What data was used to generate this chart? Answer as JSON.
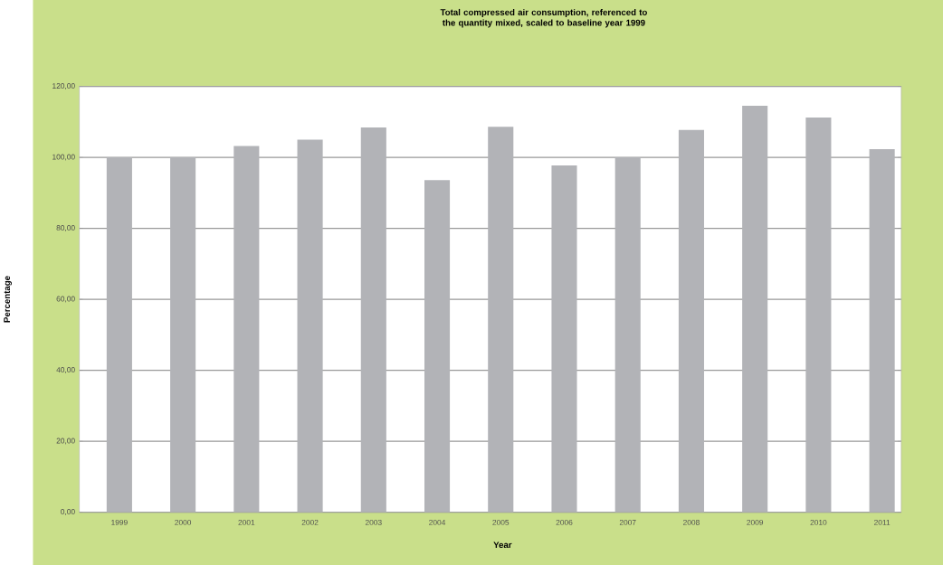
{
  "chart_data": {
    "type": "bar",
    "title": "Total compressed air consumption, referenced to the quantity mixed, scaled to baseline year 1999",
    "xlabel": "Year",
    "ylabel": "Percentage",
    "categories": [
      "1999",
      "2000",
      "2001",
      "2002",
      "2003",
      "2004",
      "2005",
      "2006",
      "2007",
      "2008",
      "2009",
      "2010",
      "2011"
    ],
    "values": [
      100,
      100,
      103.2,
      105.0,
      108.4,
      93.6,
      108.6,
      97.7,
      100,
      107.7,
      114.5,
      111.2,
      102.3
    ],
    "color": "#b2b3b7",
    "ylim": [
      0,
      120
    ],
    "yticks": [
      {
        "value": 0,
        "label": "0,00"
      },
      {
        "value": 20,
        "label": "20,00"
      },
      {
        "value": 40,
        "label": "40,00"
      },
      {
        "value": 60,
        "label": "60,00"
      },
      {
        "value": 80,
        "label": "80,00"
      },
      {
        "value": 100,
        "label": "100,00"
      },
      {
        "value": 120,
        "label": "120,00"
      }
    ],
    "grid": "y"
  }
}
